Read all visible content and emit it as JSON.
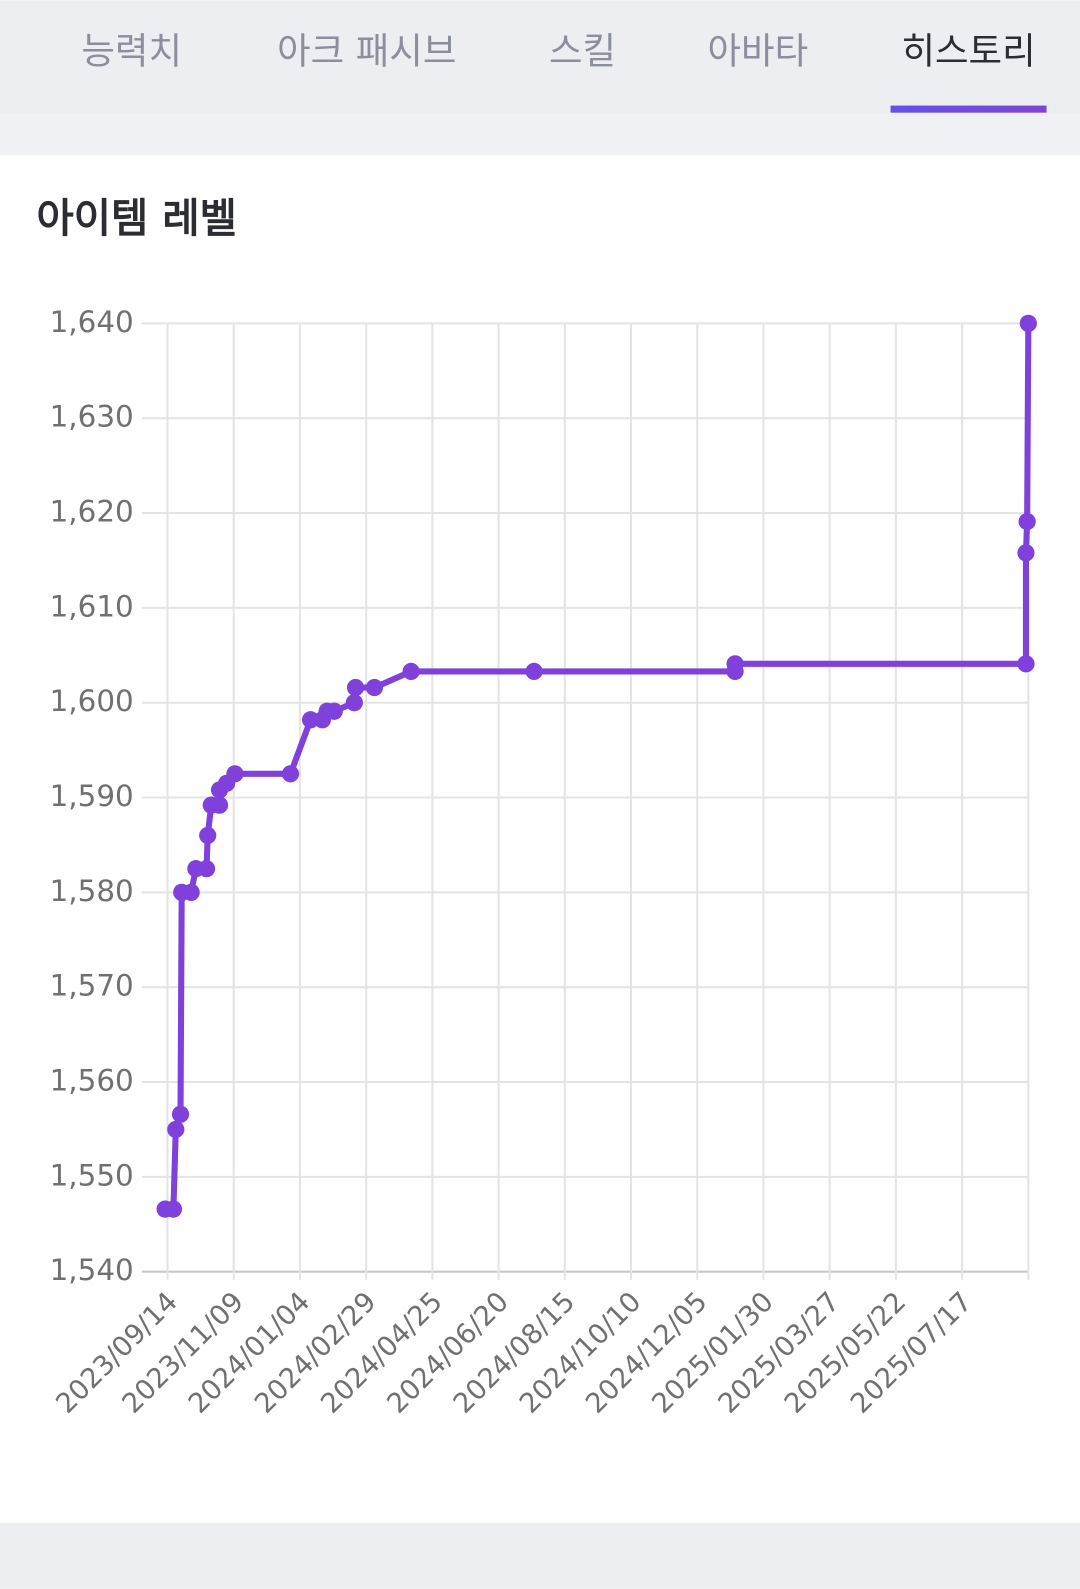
{
  "tabs": [
    "능력치",
    "아크 패시브",
    "스킬",
    "아바타",
    "히스토리"
  ],
  "active_tab": 4,
  "chart_data": {
    "type": "line",
    "title": "아이템 레벨",
    "color": "#8040db",
    "grid": true,
    "x": [
      "2023/09/12",
      "2023/09/19",
      "2023/09/21",
      "2023/09/25",
      "2023/09/26",
      "2023/10/04",
      "2023/10/08",
      "2023/10/17",
      "2023/10/18",
      "2023/10/21",
      "2023/10/28",
      "2023/10/28",
      "2023/11/03",
      "2023/11/10",
      "2023/12/27",
      "2024/01/13",
      "2024/01/23",
      "2024/01/27",
      "2024/02/02",
      "2024/02/19",
      "2024/02/20",
      "2024/03/07",
      "2024/04/07",
      "2024/07/20",
      "2025/01/06",
      "2025/01/06",
      "2025/09/09",
      "2025/09/09",
      "2025/09/10",
      "2025/09/11"
    ],
    "values": [
      1546.6,
      1546.6,
      1555.0,
      1556.6,
      1580.0,
      1580.0,
      1582.5,
      1582.5,
      1586.0,
      1589.2,
      1589.2,
      1590.8,
      1591.5,
      1592.5,
      1592.5,
      1598.2,
      1598.2,
      1599.1,
      1599.1,
      1600.0,
      1601.6,
      1601.6,
      1603.3,
      1603.3,
      1603.3,
      1604.1,
      1604.1,
      1615.8,
      1619.1,
      1640.0
    ],
    "xlim": [
      "2023/09/12",
      "2025/09/11"
    ],
    "xticks": [
      "2023/09/14",
      "2023/11/09",
      "2024/01/04",
      "2024/02/29",
      "2024/04/25",
      "2024/06/20",
      "2024/08/15",
      "2024/10/10",
      "2024/12/05",
      "2025/01/30",
      "2025/03/27",
      "2025/05/22",
      "2025/07/17"
    ],
    "ylim": [
      1540,
      1640
    ],
    "yticks": [
      {
        "value": 1540,
        "label": "1,540"
      },
      {
        "value": 1550,
        "label": "1,550"
      },
      {
        "value": 1560,
        "label": "1,560"
      },
      {
        "value": 1570,
        "label": "1,570"
      },
      {
        "value": 1580,
        "label": "1,580"
      },
      {
        "value": 1590,
        "label": "1,590"
      },
      {
        "value": 1600,
        "label": "1,600"
      },
      {
        "value": 1610,
        "label": "1,610"
      },
      {
        "value": 1620,
        "label": "1,620"
      },
      {
        "value": 1630,
        "label": "1,630"
      },
      {
        "value": 1640,
        "label": "1,640"
      }
    ]
  }
}
